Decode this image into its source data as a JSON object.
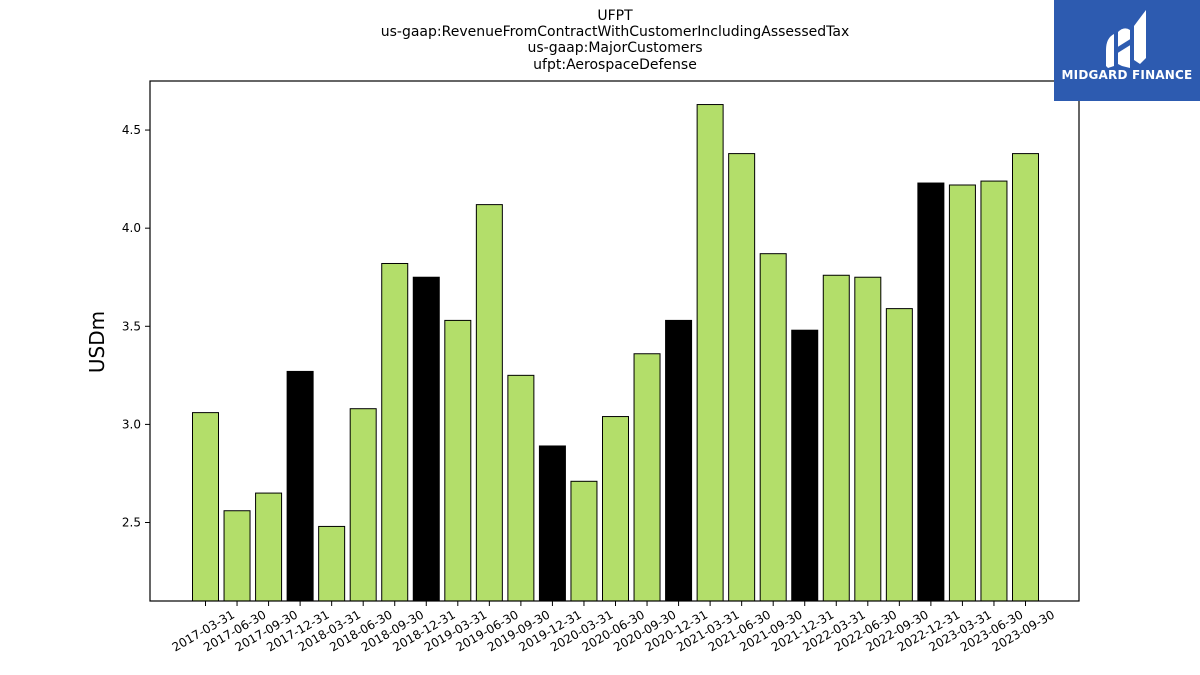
{
  "chart_data": {
    "type": "bar",
    "title_lines": [
      "UFPT",
      "us-gaap:RevenueFromContractWithCustomerIncludingAssessedTax",
      "us-gaap:MajorCustomers",
      "ufpt:AerospaceDefense"
    ],
    "xlabel": "",
    "ylabel": "USDm",
    "ylim": [
      2.1,
      4.75
    ],
    "yticks": [
      2.5,
      3.0,
      3.5,
      4.0,
      4.5
    ],
    "ytick_labels": [
      "2.5",
      "3.0",
      "3.5",
      "4.0",
      "4.5"
    ],
    "categories": [
      "2017-03-31",
      "2017-06-30",
      "2017-09-30",
      "2017-12-31",
      "2018-03-31",
      "2018-06-30",
      "2018-09-30",
      "2018-12-31",
      "2019-03-31",
      "2019-06-30",
      "2019-09-30",
      "2019-12-31",
      "2020-03-31",
      "2020-06-30",
      "2020-09-30",
      "2020-12-31",
      "2021-03-31",
      "2021-06-30",
      "2021-09-30",
      "2021-12-31",
      "2022-03-31",
      "2022-06-30",
      "2022-09-30",
      "2022-12-31",
      "2023-03-31",
      "2023-06-30",
      "2023-09-30"
    ],
    "values": [
      3.06,
      2.56,
      2.65,
      3.27,
      2.48,
      3.08,
      3.82,
      3.75,
      3.53,
      4.12,
      3.25,
      2.89,
      2.71,
      3.04,
      3.36,
      3.53,
      4.63,
      4.38,
      3.87,
      3.48,
      3.76,
      3.75,
      3.59,
      4.23,
      4.22,
      4.24,
      4.38
    ],
    "bar_colors": [
      "#b3de6a",
      "#b3de6a",
      "#b3de6a",
      "#000000",
      "#b3de6a",
      "#b3de6a",
      "#b3de6a",
      "#000000",
      "#b3de6a",
      "#b3de6a",
      "#b3de6a",
      "#000000",
      "#b3de6a",
      "#b3de6a",
      "#b3de6a",
      "#000000",
      "#b3de6a",
      "#b3de6a",
      "#b3de6a",
      "#000000",
      "#b3de6a",
      "#b3de6a",
      "#b3de6a",
      "#000000",
      "#b3de6a",
      "#b3de6a",
      "#b3de6a"
    ],
    "grid": false,
    "legend": "none"
  },
  "logo": {
    "text": "MIDGARD FINANCE",
    "background": "#2d5bb0",
    "foreground": "#ffffff",
    "icon": "midgard-logo-icon"
  }
}
